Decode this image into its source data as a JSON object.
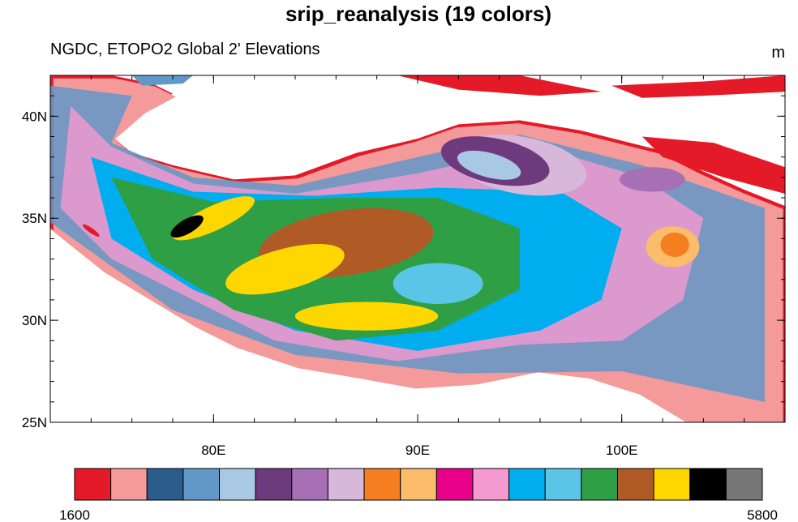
{
  "header": {
    "title": "srip_reanalysis (19 colors)",
    "subtitle": "NGDC, ETOPO2 Global 2' Elevations",
    "units": "m"
  },
  "map": {
    "lon_range": [
      72,
      108
    ],
    "lat_range": [
      25,
      42
    ],
    "lon_ticks": [
      {
        "value": 80,
        "label": "80E"
      },
      {
        "value": 90,
        "label": "90E"
      },
      {
        "value": 100,
        "label": "100E"
      }
    ],
    "lat_ticks": [
      {
        "value": 25,
        "label": "25N"
      },
      {
        "value": 30,
        "label": "30N"
      },
      {
        "value": 35,
        "label": "35N"
      },
      {
        "value": 40,
        "label": "40N"
      }
    ]
  },
  "colorbar": {
    "colors": [
      "#e41a28",
      "#f59a9a",
      "#2b5c8a",
      "#6198c8",
      "#a9c8e3",
      "#6e3a7e",
      "#a66fb6",
      "#d7b7da",
      "#f57f20",
      "#fbbd6b",
      "#e8008a",
      "#f49ad0",
      "#00aeef",
      "#5bc5e8",
      "#2f9f46",
      "#b05a26",
      "#ffd700",
      "#000000",
      "#777777"
    ],
    "min_label": 1600,
    "max_label": 5800
  }
}
